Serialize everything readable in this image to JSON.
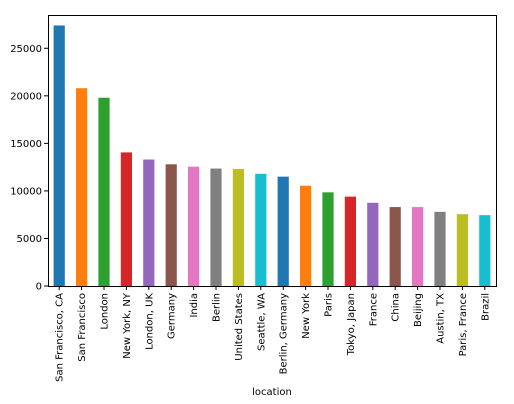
{
  "chart_data": {
    "type": "bar",
    "title": "",
    "xlabel": "location",
    "ylabel": "",
    "ylim": [
      0,
      28500
    ],
    "yticks": [
      0,
      5000,
      10000,
      15000,
      20000,
      25000
    ],
    "grid": false,
    "legend": "none",
    "categories": [
      "San Francisco, CA",
      "San Francisco",
      "London",
      "New York, NY",
      "London, UK",
      "Germany",
      "India",
      "Berlin",
      "United States",
      "Seattle, WA",
      "Berlin, Germany",
      "New York",
      "Paris",
      "Tokyo, Japan",
      "France",
      "China",
      "Beijing",
      "Austin, TX",
      "Paris, France",
      "Brazil"
    ],
    "values": [
      27400,
      20800,
      19800,
      14050,
      13300,
      12800,
      12550,
      12350,
      12300,
      11800,
      11500,
      10550,
      9850,
      9400,
      8750,
      8300,
      8300,
      7800,
      7550,
      7450
    ],
    "colors": [
      "#1f77b4",
      "#ff7f0e",
      "#2ca02c",
      "#d62728",
      "#9467bd",
      "#8c564b",
      "#e377c2",
      "#7f7f7f",
      "#bcbd22",
      "#17becf"
    ]
  }
}
